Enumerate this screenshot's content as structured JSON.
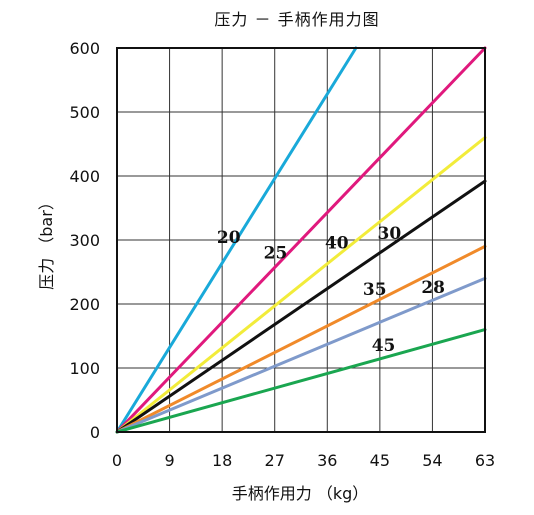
{
  "chart_data": {
    "type": "line",
    "title": "压力 － 手柄作用力图",
    "xlabel": "手柄作用力 （kg）",
    "ylabel": "压力 （bar）",
    "xlim": [
      0,
      63
    ],
    "ylim": [
      0,
      600
    ],
    "xticks": [
      0,
      9,
      18,
      27,
      36,
      45,
      54,
      63
    ],
    "yticks": [
      0,
      100,
      200,
      300,
      400,
      500,
      600
    ],
    "grid": true,
    "series": [
      {
        "name": "20",
        "color": "#19a9d9",
        "x": [
          0,
          40.9
        ],
        "y": [
          0,
          600
        ]
      },
      {
        "name": "25",
        "color": "#e0197d",
        "x": [
          0,
          63
        ],
        "y": [
          0,
          600
        ]
      },
      {
        "name": "40",
        "color": "#f2ec3a",
        "x": [
          0,
          63
        ],
        "y": [
          0,
          460
        ]
      },
      {
        "name": "30",
        "color": "#111111",
        "x": [
          0,
          63
        ],
        "y": [
          0,
          392
        ]
      },
      {
        "name": "35",
        "color": "#f08a2a",
        "x": [
          0,
          63
        ],
        "y": [
          0,
          290
        ]
      },
      {
        "name": "28",
        "color": "#7f9acb",
        "x": [
          0,
          63
        ],
        "y": [
          0,
          240
        ]
      },
      {
        "name": "45",
        "color": "#1aa650",
        "x": [
          0,
          63
        ],
        "y": [
          0,
          160
        ]
      }
    ]
  }
}
